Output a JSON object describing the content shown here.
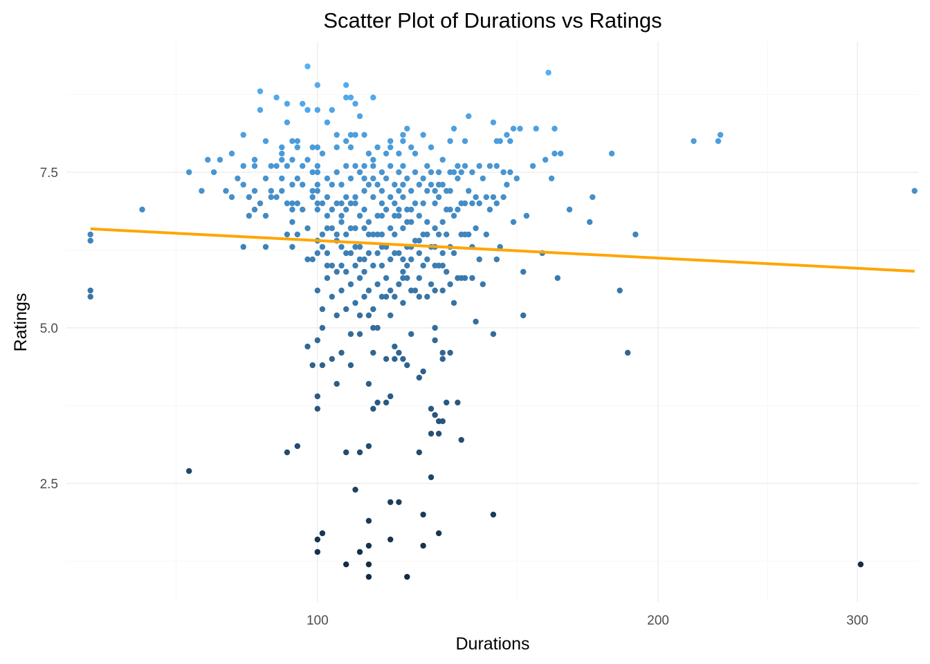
{
  "chart_data": {
    "type": "scatter",
    "title": "Scatter Plot of Durations vs Ratings",
    "xlabel": "Durations",
    "ylabel": "Ratings",
    "x_scale": "log10",
    "xlim": [
      60,
      340
    ],
    "ylim": [
      0.6,
      9.6
    ],
    "x_ticks": [
      100,
      200,
      300
    ],
    "x_tick_labels": [
      "100",
      "200",
      "300"
    ],
    "y_ticks": [
      2.5,
      5.0,
      7.5
    ],
    "y_tick_labels": [
      "2.5",
      "5.0",
      "7.5"
    ],
    "grid": true,
    "legend": "none",
    "colors": {
      "low": "#132b43",
      "high": "#56b1f7",
      "trend_line": "#ffa500",
      "grid": "#ebebeb"
    },
    "trend_line": {
      "type": "linear",
      "x": [
        63,
        337
      ],
      "y": [
        6.59,
        5.91
      ]
    },
    "points": [
      [
        63,
        6.5
      ],
      [
        63,
        6.4
      ],
      [
        63,
        5.6
      ],
      [
        63,
        5.5
      ],
      [
        70,
        6.9
      ],
      [
        77,
        2.7
      ],
      [
        77,
        7.5
      ],
      [
        79,
        7.2
      ],
      [
        80,
        7.7
      ],
      [
        81,
        7.5
      ],
      [
        82,
        7.7
      ],
      [
        83,
        7.2
      ],
      [
        84,
        7.8
      ],
      [
        84,
        7.1
      ],
      [
        85,
        7.4
      ],
      [
        86,
        6.3
      ],
      [
        86,
        8.1
      ],
      [
        86,
        7.6
      ],
      [
        87,
        6.8
      ],
      [
        88,
        7.7
      ],
      [
        88,
        7.2
      ],
      [
        88,
        6.9
      ],
      [
        88,
        7.6
      ],
      [
        89,
        8.8
      ],
      [
        89,
        8.5
      ],
      [
        89,
        7.0
      ],
      [
        90,
        8.0
      ],
      [
        90,
        7.4
      ],
      [
        90,
        6.3
      ],
      [
        90,
        6.8
      ],
      [
        91,
        7.6
      ],
      [
        91,
        7.1
      ],
      [
        91,
        7.2
      ],
      [
        92,
        8.7
      ],
      [
        92,
        7.6
      ],
      [
        92,
        7.1
      ],
      [
        93,
        7.9
      ],
      [
        93,
        7.7
      ],
      [
        93,
        7.4
      ],
      [
        93,
        7.2
      ],
      [
        94,
        8.6
      ],
      [
        94,
        8.3
      ],
      [
        94,
        7.0
      ],
      [
        94,
        6.5
      ],
      [
        94,
        7.6
      ],
      [
        94,
        3.0
      ],
      [
        95,
        8.0
      ],
      [
        95,
        7.7
      ],
      [
        95,
        7.0
      ],
      [
        95,
        6.9
      ],
      [
        95,
        6.7
      ],
      [
        95,
        7.3
      ],
      [
        96,
        8.0
      ],
      [
        96,
        7.4
      ],
      [
        96,
        7.0
      ],
      [
        96,
        6.5
      ],
      [
        96,
        3.1
      ],
      [
        97,
        6.9
      ],
      [
        97,
        7.6
      ],
      [
        97,
        7.3
      ],
      [
        98,
        8.5
      ],
      [
        98,
        6.1
      ],
      [
        98,
        4.7
      ],
      [
        98,
        6.6
      ],
      [
        98,
        7.7
      ],
      [
        99,
        7.9
      ],
      [
        99,
        7.5
      ],
      [
        99,
        7.2
      ],
      [
        99,
        4.4
      ],
      [
        99,
        6.1
      ],
      [
        100,
        8.9
      ],
      [
        100,
        8.5
      ],
      [
        100,
        7.9
      ],
      [
        100,
        7.5
      ],
      [
        100,
        7.0
      ],
      [
        100,
        6.4
      ],
      [
        100,
        5.6
      ],
      [
        100,
        4.8
      ],
      [
        100,
        3.9
      ],
      [
        100,
        3.7
      ],
      [
        100,
        1.6
      ],
      [
        100,
        1.4
      ],
      [
        100,
        7.2
      ],
      [
        100,
        6.9
      ],
      [
        100,
        7.3
      ],
      [
        101,
        7.8
      ],
      [
        101,
        7.0
      ],
      [
        101,
        6.3
      ],
      [
        101,
        5.3
      ],
      [
        101,
        5.0
      ],
      [
        101,
        4.4
      ],
      [
        101,
        1.7
      ],
      [
        102,
        8.3
      ],
      [
        102,
        7.4
      ],
      [
        102,
        7.1
      ],
      [
        102,
        6.8
      ],
      [
        102,
        6.2
      ],
      [
        102,
        5.8
      ],
      [
        102,
        6.0
      ],
      [
        103,
        8.5
      ],
      [
        103,
        7.3
      ],
      [
        103,
        6.6
      ],
      [
        103,
        5.5
      ],
      [
        103,
        4.5
      ],
      [
        104,
        8.1
      ],
      [
        104,
        7.5
      ],
      [
        104,
        7.0
      ],
      [
        104,
        6.4
      ],
      [
        104,
        5.9
      ],
      [
        104,
        5.2
      ],
      [
        104,
        4.1
      ],
      [
        105,
        7.3
      ],
      [
        105,
        6.8
      ],
      [
        105,
        6.3
      ],
      [
        105,
        6.0
      ],
      [
        105,
        5.6
      ],
      [
        105,
        4.6
      ],
      [
        105,
        6.7
      ],
      [
        106,
        8.9
      ],
      [
        106,
        8.7
      ],
      [
        106,
        8.0
      ],
      [
        106,
        7.6
      ],
      [
        106,
        7.1
      ],
      [
        106,
        6.5
      ],
      [
        106,
        5.9
      ],
      [
        106,
        5.3
      ],
      [
        106,
        3.0
      ],
      [
        106,
        1.2
      ],
      [
        106,
        6.9
      ],
      [
        107,
        8.7
      ],
      [
        107,
        7.9
      ],
      [
        107,
        7.4
      ],
      [
        107,
        7.0
      ],
      [
        107,
        6.6
      ],
      [
        107,
        6.2
      ],
      [
        107,
        5.7
      ],
      [
        107,
        4.9
      ],
      [
        107,
        4.4
      ],
      [
        108,
        8.6
      ],
      [
        108,
        8.1
      ],
      [
        108,
        7.6
      ],
      [
        108,
        6.6
      ],
      [
        108,
        6.0
      ],
      [
        108,
        5.4
      ],
      [
        108,
        2.4
      ],
      [
        108,
        7.0
      ],
      [
        109,
        7.5
      ],
      [
        109,
        6.8
      ],
      [
        109,
        6.3
      ],
      [
        109,
        5.8
      ],
      [
        109,
        5.2
      ],
      [
        109,
        4.9
      ],
      [
        109,
        3.0
      ],
      [
        109,
        1.4
      ],
      [
        110,
        8.1
      ],
      [
        110,
        7.6
      ],
      [
        110,
        7.2
      ],
      [
        110,
        6.6
      ],
      [
        110,
        6.1
      ],
      [
        110,
        5.5
      ],
      [
        110,
        6.9
      ],
      [
        111,
        7.8
      ],
      [
        111,
        7.3
      ],
      [
        111,
        6.7
      ],
      [
        111,
        6.2
      ],
      [
        111,
        5.6
      ],
      [
        111,
        5.2
      ],
      [
        111,
        4.1
      ],
      [
        111,
        3.1
      ],
      [
        111,
        1.9
      ],
      [
        111,
        1.5
      ],
      [
        111,
        1.2
      ],
      [
        111,
        1.0
      ],
      [
        112,
        8.7
      ],
      [
        112,
        7.7
      ],
      [
        112,
        7.1
      ],
      [
        112,
        6.5
      ],
      [
        112,
        6.0
      ],
      [
        112,
        5.0
      ],
      [
        112,
        4.6
      ],
      [
        112,
        3.7
      ],
      [
        112,
        7.4
      ],
      [
        113,
        7.9
      ],
      [
        113,
        7.3
      ],
      [
        113,
        6.8
      ],
      [
        113,
        6.2
      ],
      [
        113,
        5.7
      ],
      [
        113,
        5.0
      ],
      [
        113,
        3.8
      ],
      [
        114,
        7.5
      ],
      [
        114,
        7.0
      ],
      [
        114,
        6.5
      ],
      [
        114,
        6.0
      ],
      [
        114,
        5.5
      ],
      [
        114,
        7.2
      ],
      [
        115,
        7.8
      ],
      [
        115,
        7.4
      ],
      [
        115,
        6.9
      ],
      [
        115,
        6.3
      ],
      [
        115,
        5.8
      ],
      [
        115,
        4.5
      ],
      [
        115,
        3.8
      ],
      [
        116,
        8.0
      ],
      [
        116,
        7.6
      ],
      [
        116,
        7.1
      ],
      [
        116,
        6.6
      ],
      [
        116,
        6.1
      ],
      [
        116,
        5.6
      ],
      [
        116,
        5.2
      ],
      [
        116,
        3.9
      ],
      [
        116,
        2.2
      ],
      [
        116,
        1.6
      ],
      [
        117,
        7.3
      ],
      [
        117,
        6.8
      ],
      [
        117,
        6.2
      ],
      [
        117,
        5.5
      ],
      [
        117,
        4.7
      ],
      [
        117,
        4.5
      ],
      [
        117,
        7.0
      ],
      [
        118,
        7.8
      ],
      [
        118,
        7.5
      ],
      [
        118,
        6.8
      ],
      [
        118,
        6.2
      ],
      [
        118,
        5.7
      ],
      [
        118,
        4.6
      ],
      [
        118,
        2.2
      ],
      [
        119,
        8.0
      ],
      [
        119,
        8.1
      ],
      [
        119,
        7.6
      ],
      [
        119,
        7.1
      ],
      [
        119,
        6.6
      ],
      [
        119,
        6.1
      ],
      [
        119,
        5.8
      ],
      [
        119,
        5.4
      ],
      [
        119,
        4.5
      ],
      [
        119,
        7.3
      ],
      [
        120,
        8.2
      ],
      [
        120,
        7.4
      ],
      [
        120,
        6.9
      ],
      [
        120,
        6.3
      ],
      [
        120,
        5.8
      ],
      [
        120,
        4.4
      ],
      [
        120,
        1.0
      ],
      [
        120,
        6.7
      ],
      [
        121,
        7.9
      ],
      [
        121,
        7.2
      ],
      [
        121,
        6.7
      ],
      [
        121,
        6.1
      ],
      [
        121,
        5.6
      ],
      [
        121,
        4.9
      ],
      [
        122,
        7.5
      ],
      [
        122,
        7.0
      ],
      [
        122,
        6.4
      ],
      [
        122,
        5.6
      ],
      [
        123,
        7.3
      ],
      [
        123,
        6.8
      ],
      [
        123,
        6.2
      ],
      [
        123,
        5.8
      ],
      [
        123,
        5.5
      ],
      [
        123,
        4.2
      ],
      [
        123,
        3.0
      ],
      [
        124,
        8.1
      ],
      [
        124,
        7.4
      ],
      [
        124,
        7.0
      ],
      [
        124,
        6.5
      ],
      [
        124,
        6.0
      ],
      [
        124,
        4.3
      ],
      [
        124,
        2.0
      ],
      [
        124,
        1.5
      ],
      [
        125,
        7.6
      ],
      [
        125,
        7.2
      ],
      [
        125,
        6.7
      ],
      [
        125,
        6.1
      ],
      [
        125,
        5.5
      ],
      [
        126,
        7.9
      ],
      [
        126,
        7.3
      ],
      [
        126,
        6.3
      ],
      [
        126,
        5.7
      ],
      [
        126,
        3.7
      ],
      [
        126,
        3.3
      ],
      [
        126,
        2.6
      ],
      [
        127,
        7.2
      ],
      [
        127,
        6.6
      ],
      [
        127,
        6.0
      ],
      [
        127,
        5.6
      ],
      [
        127,
        5.0
      ],
      [
        127,
        4.8
      ],
      [
        127,
        3.6
      ],
      [
        127,
        7.0
      ],
      [
        128,
        7.5
      ],
      [
        128,
        7.1
      ],
      [
        128,
        6.5
      ],
      [
        128,
        6.0
      ],
      [
        128,
        3.3
      ],
      [
        128,
        3.5
      ],
      [
        128,
        1.7
      ],
      [
        129,
        7.7
      ],
      [
        129,
        7.3
      ],
      [
        129,
        6.7
      ],
      [
        129,
        6.2
      ],
      [
        129,
        5.6
      ],
      [
        129,
        4.6
      ],
      [
        129,
        4.5
      ],
      [
        129,
        3.5
      ],
      [
        130,
        7.2
      ],
      [
        130,
        6.5
      ],
      [
        130,
        5.9
      ],
      [
        130,
        3.8
      ],
      [
        131,
        8.0
      ],
      [
        131,
        7.5
      ],
      [
        131,
        6.9
      ],
      [
        131,
        6.3
      ],
      [
        131,
        5.7
      ],
      [
        131,
        4.6
      ],
      [
        132,
        8.2
      ],
      [
        132,
        7.5
      ],
      [
        132,
        6.8
      ],
      [
        132,
        6.2
      ],
      [
        132,
        5.4
      ],
      [
        133,
        7.4
      ],
      [
        133,
        6.9
      ],
      [
        133,
        5.8
      ],
      [
        133,
        3.8
      ],
      [
        134,
        7.5
      ],
      [
        134,
        7.0
      ],
      [
        134,
        6.5
      ],
      [
        134,
        5.8
      ],
      [
        134,
        3.2
      ],
      [
        135,
        8.0
      ],
      [
        135,
        7.6
      ],
      [
        135,
        7.0
      ],
      [
        135,
        6.5
      ],
      [
        135,
        5.8
      ],
      [
        136,
        8.4
      ],
      [
        136,
        7.2
      ],
      [
        136,
        6.5
      ],
      [
        137,
        7.5
      ],
      [
        137,
        7.0
      ],
      [
        137,
        6.3
      ],
      [
        137,
        5.8
      ],
      [
        138,
        7.1
      ],
      [
        138,
        6.6
      ],
      [
        138,
        5.1
      ],
      [
        139,
        7.6
      ],
      [
        139,
        7.0
      ],
      [
        139,
        6.1
      ],
      [
        140,
        7.4
      ],
      [
        140,
        5.7
      ],
      [
        141,
        7.1
      ],
      [
        141,
        6.5
      ],
      [
        142,
        7.6
      ],
      [
        142,
        6.9
      ],
      [
        143,
        8.3
      ],
      [
        143,
        7.1
      ],
      [
        143,
        4.9
      ],
      [
        143,
        2.0
      ],
      [
        144,
        8.0
      ],
      [
        144,
        7.6
      ],
      [
        144,
        7.0
      ],
      [
        144,
        6.1
      ],
      [
        145,
        8.0
      ],
      [
        145,
        6.3
      ],
      [
        146,
        7.5
      ],
      [
        146,
        7.1
      ],
      [
        147,
        8.1
      ],
      [
        147,
        7.3
      ],
      [
        148,
        8.0
      ],
      [
        148,
        7.5
      ],
      [
        149,
        8.2
      ],
      [
        149,
        6.7
      ],
      [
        150,
        7.4
      ],
      [
        151,
        8.2
      ],
      [
        152,
        5.9
      ],
      [
        152,
        5.2
      ],
      [
        153,
        6.8
      ],
      [
        155,
        7.6
      ],
      [
        156,
        8.2
      ],
      [
        158,
        6.2
      ],
      [
        159,
        7.7
      ],
      [
        160,
        9.1
      ],
      [
        161,
        7.4
      ],
      [
        162,
        8.2
      ],
      [
        162,
        7.8
      ],
      [
        163,
        5.8
      ],
      [
        164,
        7.8
      ],
      [
        167,
        6.9
      ],
      [
        174,
        6.7
      ],
      [
        175,
        7.1
      ],
      [
        182,
        7.8
      ],
      [
        185,
        5.6
      ],
      [
        188,
        4.6
      ],
      [
        191,
        6.5
      ],
      [
        215,
        8.0
      ],
      [
        226,
        8.0
      ],
      [
        227,
        8.1
      ],
      [
        302,
        1.2
      ],
      [
        337,
        7.2
      ],
      [
        86,
        7.3
      ],
      [
        87,
        7.1
      ],
      [
        97,
        8.6
      ],
      [
        99,
        7.1
      ],
      [
        105,
        7.0
      ],
      [
        110,
        7.4
      ],
      [
        118,
        6.9
      ],
      [
        125,
        6.5
      ],
      [
        130,
        6.9
      ],
      [
        95,
        6.3
      ],
      [
        100,
        6.2
      ],
      [
        102,
        6.6
      ],
      [
        104,
        6.5
      ],
      [
        106,
        6.2
      ],
      [
        108,
        6.3
      ],
      [
        113,
        6.5
      ],
      [
        117,
        6.5
      ],
      [
        119,
        5.9
      ],
      [
        121,
        6.3
      ],
      [
        123,
        6.4
      ],
      [
        127,
        6.3
      ],
      [
        129,
        6.0
      ],
      [
        120,
        6.0
      ],
      [
        115,
        5.5
      ],
      [
        114,
        6.3
      ],
      [
        111,
        6.5
      ],
      [
        109,
        6.1
      ],
      [
        103,
        6.0
      ],
      [
        101,
        6.5
      ],
      [
        112,
        5.3
      ],
      [
        110,
        5.9
      ],
      [
        96,
        7.9
      ],
      [
        98,
        9.2
      ],
      [
        93,
        7.8
      ],
      [
        100,
        7.6
      ],
      [
        104,
        7.9
      ],
      [
        107,
        8.1
      ],
      [
        109,
        8.4
      ],
      [
        112,
        7.6
      ],
      [
        116,
        7.9
      ],
      [
        118,
        7.2
      ],
      [
        122,
        7.8
      ],
      [
        126,
        7.5
      ],
      [
        128,
        7.3
      ],
      [
        131,
        7.2
      ],
      [
        133,
        7.6
      ],
      [
        103,
        6.9
      ],
      [
        108,
        7.1
      ],
      [
        114,
        6.8
      ],
      [
        121,
        6.9
      ]
    ]
  }
}
